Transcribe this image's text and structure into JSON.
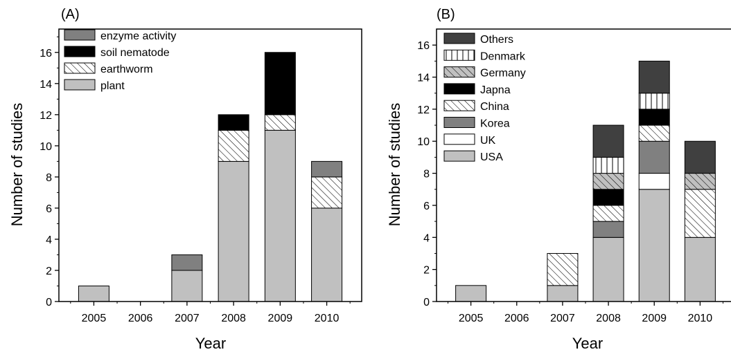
{
  "chart_data": [
    {
      "type": "bar",
      "stacked": true,
      "panel_label": "(A)",
      "title": "",
      "xlabel": "Year",
      "ylabel": "Number of studies",
      "ylim": [
        0,
        17.5
      ],
      "yticks": [
        0,
        2,
        4,
        6,
        8,
        10,
        12,
        14,
        16
      ],
      "categories": [
        "2005",
        "2006",
        "2007",
        "2008",
        "2009",
        "2010"
      ],
      "legend_position": "top-left",
      "legend_order": [
        "enzyme activity",
        "soil nematode",
        "earthworm",
        "plant"
      ],
      "series": [
        {
          "name": "plant",
          "values": [
            1,
            0,
            2,
            9,
            11,
            6
          ],
          "fill": "#c0c0c0",
          "pattern": "none"
        },
        {
          "name": "earthworm",
          "values": [
            0,
            0,
            0,
            2,
            1,
            2
          ],
          "fill": "#ffffff",
          "pattern": "hatch"
        },
        {
          "name": "soil nematode",
          "values": [
            0,
            0,
            0,
            1,
            4,
            0
          ],
          "fill": "#000000",
          "pattern": "none"
        },
        {
          "name": "enzyme activity",
          "values": [
            0,
            0,
            1,
            0,
            0,
            1
          ],
          "fill": "#808080",
          "pattern": "none"
        }
      ]
    },
    {
      "type": "bar",
      "stacked": true,
      "panel_label": "(B)",
      "title": "",
      "xlabel": "Year",
      "ylabel": "Number of studies",
      "ylim": [
        0,
        17
      ],
      "yticks": [
        0,
        2,
        4,
        6,
        8,
        10,
        12,
        14,
        16
      ],
      "categories": [
        "2005",
        "2006",
        "2007",
        "2008",
        "2009",
        "2010"
      ],
      "legend_position": "top-left",
      "legend_order": [
        "Others",
        "Denmark",
        "Germany",
        "Japna",
        "China",
        "Korea",
        "UK",
        "USA"
      ],
      "series": [
        {
          "name": "USA",
          "values": [
            1,
            0,
            1,
            4,
            7,
            4
          ],
          "fill": "#c0c0c0",
          "pattern": "none"
        },
        {
          "name": "UK",
          "values": [
            0,
            0,
            0,
            0,
            1,
            0
          ],
          "fill": "#ffffff",
          "pattern": "none"
        },
        {
          "name": "Korea",
          "values": [
            0,
            0,
            0,
            1,
            2,
            0
          ],
          "fill": "#808080",
          "pattern": "none"
        },
        {
          "name": "China",
          "values": [
            0,
            0,
            2,
            1,
            1,
            3
          ],
          "fill": "#ffffff",
          "pattern": "hatch"
        },
        {
          "name": "Japna",
          "values": [
            0,
            0,
            0,
            1,
            1,
            0
          ],
          "fill": "#000000",
          "pattern": "none"
        },
        {
          "name": "Germany",
          "values": [
            0,
            0,
            0,
            1,
            0,
            1
          ],
          "fill": "#c0c0c0",
          "pattern": "hatch"
        },
        {
          "name": "Denmark",
          "values": [
            0,
            0,
            0,
            1,
            1,
            0
          ],
          "fill": "#ffffff",
          "pattern": "vlines"
        },
        {
          "name": "Others",
          "values": [
            0,
            0,
            0,
            2,
            2,
            2
          ],
          "fill": "#404040",
          "pattern": "none"
        }
      ]
    }
  ]
}
